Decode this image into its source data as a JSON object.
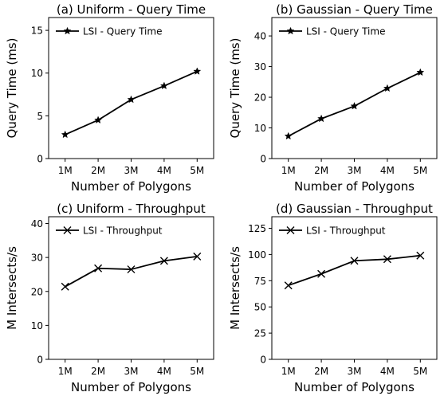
{
  "chart_data": [
    {
      "type": "line",
      "title": "(a) Uniform - Query Time",
      "xlabel": "Number of Polygons",
      "ylabel": "Query Time (ms)",
      "categories": [
        "1M",
        "2M",
        "3M",
        "4M",
        "5M"
      ],
      "ylim": [
        0,
        16.5
      ],
      "yticks": [
        0,
        5,
        10,
        15
      ],
      "legend_position": "top-left",
      "series": [
        {
          "name": "LSI - Query Time",
          "marker": "star",
          "color": "#000000",
          "values": [
            2.8,
            4.5,
            6.9,
            8.5,
            10.2
          ]
        }
      ]
    },
    {
      "type": "line",
      "title": "(b) Gaussian - Query Time",
      "xlabel": "Number of Polygons",
      "ylabel": "Query Time (ms)",
      "categories": [
        "1M",
        "2M",
        "3M",
        "4M",
        "5M"
      ],
      "ylim": [
        0,
        46
      ],
      "yticks": [
        0,
        10,
        20,
        30,
        40
      ],
      "legend_position": "top-left",
      "series": [
        {
          "name": "LSI - Query Time",
          "marker": "star",
          "color": "#000000",
          "values": [
            7.3,
            13.0,
            17.1,
            22.9,
            28.1
          ]
        }
      ]
    },
    {
      "type": "line",
      "title": "(c) Uniform - Throughput",
      "xlabel": "Number of Polygons",
      "ylabel": "M Intersects/s",
      "categories": [
        "1M",
        "2M",
        "3M",
        "4M",
        "5M"
      ],
      "ylim": [
        0,
        42
      ],
      "yticks": [
        0,
        10,
        20,
        30,
        40
      ],
      "legend_position": "top-left",
      "series": [
        {
          "name": "LSI - Throughput",
          "marker": "x",
          "color": "#000000",
          "values": [
            21.4,
            26.8,
            26.5,
            29.0,
            30.3
          ]
        }
      ]
    },
    {
      "type": "line",
      "title": "(d) Gaussian - Throughput",
      "xlabel": "Number of Polygons",
      "ylabel": "M Intersects/s",
      "categories": [
        "1M",
        "2M",
        "3M",
        "4M",
        "5M"
      ],
      "ylim": [
        0,
        136
      ],
      "yticks": [
        0,
        25,
        50,
        75,
        100,
        125
      ],
      "legend_position": "top-left",
      "series": [
        {
          "name": "LSI - Throughput",
          "marker": "x",
          "color": "#000000",
          "values": [
            70.5,
            81.5,
            94.0,
            95.5,
            99.0
          ]
        }
      ]
    }
  ]
}
